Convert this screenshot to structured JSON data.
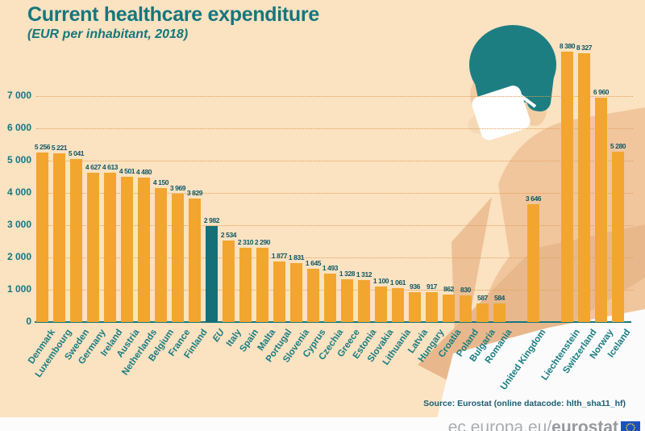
{
  "title": "Current healthcare expenditure",
  "subtitle": "(EUR per inhabitant, 2018)",
  "source_note": "Source:  Eurostat (online datacode: hlth_sha11_hf)",
  "footer": {
    "url_prefix": "ec.europa.eu/",
    "url_bold": "eurostat"
  },
  "colors": {
    "background": "#fbe2c1",
    "bar_orange": "#f2a62f",
    "bar_highlight_teal": "#156f77",
    "text_teal": "#14777d",
    "value_label": "#0e5765",
    "gridline_orange": "#df9f55",
    "illustration_hair_teal": "#1d7e82",
    "illustration_skin": "#f1c69d",
    "illustration_skin_dark": "#e8b88c",
    "mask_white": "#ffffff",
    "footer_gray": "#aaadb1",
    "eu_flag_blue": "#1b4fc7"
  },
  "chart_data": {
    "type": "bar",
    "title": "Current healthcare expenditure",
    "subtitle": "(EUR per inhabitant, 2018)",
    "ylabel": "EUR per inhabitant",
    "ylim": [
      0,
      8500
    ],
    "yticks": [
      0,
      1000,
      2000,
      3000,
      4000,
      5000,
      6000,
      7000
    ],
    "grid": "horizontal-dotted",
    "legend": "none",
    "value_labels": true,
    "highlight_category": "EU",
    "separator_gaps_before": [
      "United Kingdom",
      "Liechtenstein"
    ],
    "categories": [
      "Denmark",
      "Luxembourg",
      "Sweden",
      "Germany",
      "Ireland",
      "Austria",
      "Netherlands",
      "Belgium",
      "France",
      "Finland",
      "EU",
      "Italy",
      "Spain",
      "Malta",
      "Portugal",
      "Slovenia",
      "Cyprus",
      "Czechia",
      "Greece",
      "Estonia",
      "Slovakia",
      "Lithuania",
      "Latvia",
      "Hungary",
      "Croatia",
      "Poland",
      "Bulgaria",
      "Romania",
      "United Kingdom",
      "Liechtenstein",
      "Switzerland",
      "Norway",
      "Iceland"
    ],
    "values": [
      5256,
      5221,
      5041,
      4627,
      4613,
      4501,
      4480,
      4150,
      3969,
      3829,
      2982,
      2534,
      2310,
      2290,
      1877,
      1831,
      1645,
      1493,
      1328,
      1312,
      1100,
      1061,
      936,
      917,
      862,
      830,
      587,
      584,
      3646,
      8380,
      8327,
      6960,
      5280
    ]
  }
}
